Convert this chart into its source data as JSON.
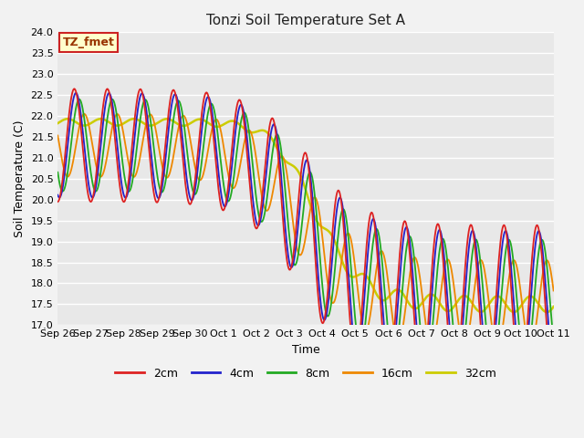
{
  "title": "Tonzi Soil Temperature Set A",
  "xlabel": "Time",
  "ylabel": "Soil Temperature (C)",
  "ylim": [
    17.0,
    24.0
  ],
  "yticks": [
    17.0,
    17.5,
    18.0,
    18.5,
    19.0,
    19.5,
    20.0,
    20.5,
    21.0,
    21.5,
    22.0,
    22.5,
    23.0,
    23.5,
    24.0
  ],
  "x_labels": [
    "Sep 26",
    "Sep 27",
    "Sep 28",
    "Sep 29",
    "Sep 30",
    "Oct 1",
    "Oct 2",
    "Oct 3",
    "Oct 4",
    "Oct 5",
    "Oct 6",
    "Oct 7",
    "Oct 8",
    "Oct 9",
    "Oct 10",
    "Oct 11"
  ],
  "series": {
    "2cm": {
      "color": "#dd2222",
      "lw": 1.3
    },
    "4cm": {
      "color": "#2222cc",
      "lw": 1.3
    },
    "8cm": {
      "color": "#22aa22",
      "lw": 1.3
    },
    "16cm": {
      "color": "#ee8800",
      "lw": 1.3
    },
    "32cm": {
      "color": "#cccc00",
      "lw": 1.8
    }
  },
  "annotation": {
    "text": "TZ_fmet",
    "bg": "#ffffcc",
    "border": "#cc2222"
  },
  "bg_color": "#e8e8e8",
  "grid_color": "#ffffff",
  "fig_bg": "#f2f2f2"
}
